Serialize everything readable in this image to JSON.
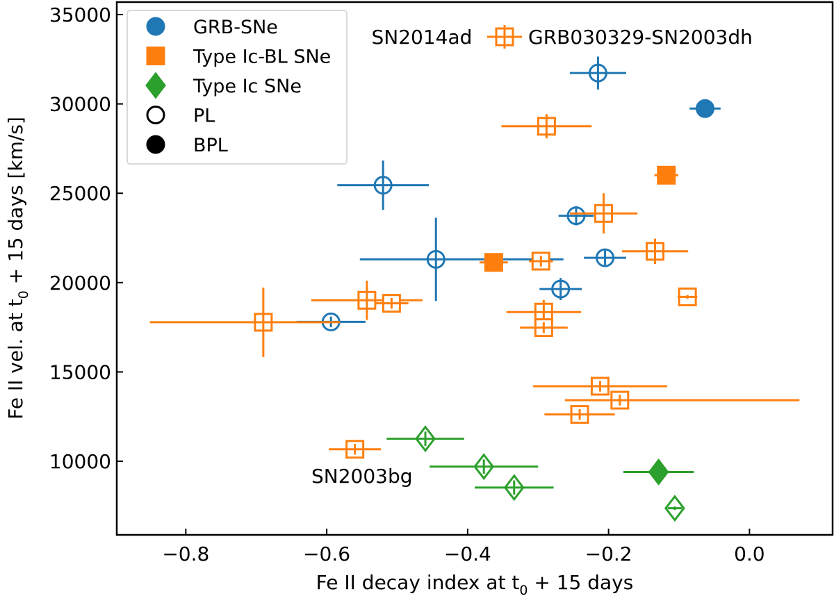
{
  "chart_data": {
    "type": "scatter",
    "title": "",
    "xlabel": {
      "main": "Fe II decay index at t",
      "sub": "0",
      "rest": " + 15 days"
    },
    "ylabel": {
      "main": "Fe II vel. at t",
      "sub": "0",
      "rest": " + 15 days [km/s]"
    },
    "xlim": [
      -0.898,
      0.118
    ],
    "ylim": [
      5880,
      35700
    ],
    "xticks": [
      -0.8,
      -0.6,
      -0.4,
      -0.2,
      0.0
    ],
    "xtick_labels": [
      "−0.8",
      "−0.6",
      "−0.4",
      "−0.2",
      "0.0"
    ],
    "yticks": [
      10000,
      15000,
      20000,
      25000,
      30000,
      35000
    ],
    "ytick_labels": [
      "10000",
      "15000",
      "20000",
      "25000",
      "30000",
      "35000"
    ],
    "grid": false,
    "legend_placement": "top-left",
    "colors": {
      "GRB-SNe": "#1f77b4",
      "Type Ic-BL SNe": "#ff7f0e",
      "Type Ic SNe": "#2ca02c"
    },
    "legend": [
      {
        "label": "GRB-SNe",
        "marker": "circle",
        "filled": true,
        "color": "#1f77b4"
      },
      {
        "label": "Type Ic-BL SNe",
        "marker": "square",
        "filled": true,
        "color": "#ff7f0e"
      },
      {
        "label": "Type Ic SNe",
        "marker": "diamond",
        "filled": true,
        "color": "#2ca02c"
      },
      {
        "label": "PL",
        "marker": "circle",
        "filled": false,
        "color": "#000000"
      },
      {
        "label": "BPL",
        "marker": "circle",
        "filled": true,
        "color": "#000000"
      }
    ],
    "series": [
      {
        "name": "GRB-SNe",
        "marker": "circle",
        "color": "#1f77b4",
        "points": [
          {
            "x": -0.215,
            "y": 31730,
            "xerr": [
              0.04,
              0.04
            ],
            "yerr": [
              920,
              920
            ],
            "fit": "PL"
          },
          {
            "x": -0.52,
            "y": 25450,
            "xerr": [
              0.065,
              0.065
            ],
            "yerr": [
              1380,
              1380
            ],
            "fit": "PL"
          },
          {
            "x": -0.445,
            "y": 21300,
            "xerr": [
              0.108,
              0.181
            ],
            "yerr": [
              2330,
              2330
            ],
            "fit": "PL"
          },
          {
            "x": -0.594,
            "y": 17800,
            "xerr": [
              0.049,
              0.049
            ],
            "yerr": [
              300,
              300
            ],
            "fit": "PL"
          },
          {
            "x": -0.246,
            "y": 23740,
            "xerr": [
              0.025,
              0.025
            ],
            "yerr": [
              540,
              540
            ],
            "fit": "PL"
          },
          {
            "x": -0.205,
            "y": 21390,
            "xerr": [
              0.03,
              0.03
            ],
            "yerr": [
              400,
              400
            ],
            "fit": "PL"
          },
          {
            "x": -0.268,
            "y": 19640,
            "xerr": [
              0.03,
              0.03
            ],
            "yerr": [
              620,
              620
            ],
            "fit": "PL"
          },
          {
            "x": -0.063,
            "y": 29740,
            "xerr": [
              0.022,
              0.022
            ],
            "yerr": [
              200,
              200
            ],
            "fit": "BPL"
          }
        ]
      },
      {
        "name": "Type Ic-BL SNe",
        "marker": "square",
        "color": "#ff7f0e",
        "points": [
          {
            "x": -0.288,
            "y": 28750,
            "xerr": [
              0.064,
              0.064
            ],
            "yerr": [
              680,
              680
            ],
            "fit": "PL"
          },
          {
            "x": -0.207,
            "y": 23870,
            "xerr": [
              0.048,
              0.048
            ],
            "yerr": [
              1130,
              1130
            ],
            "fit": "PL"
          },
          {
            "x": -0.134,
            "y": 21750,
            "xerr": [
              0.047,
              0.047
            ],
            "yerr": [
              710,
              710
            ],
            "fit": "PL"
          },
          {
            "x": -0.296,
            "y": 21200,
            "xerr": [
              0.017,
              0.017
            ],
            "yerr": [
              300,
              300
            ],
            "fit": "PL"
          },
          {
            "x": -0.088,
            "y": 19200,
            "xerr": [
              0.014,
              0.014
            ],
            "yerr": [
              100,
              100
            ],
            "fit": "PL"
          },
          {
            "x": -0.292,
            "y": 18350,
            "xerr": [
              0.053,
              0.053
            ],
            "yerr": [
              680,
              680
            ],
            "fit": "PL"
          },
          {
            "x": -0.292,
            "y": 17480,
            "xerr": [
              0.034,
              0.034
            ],
            "yerr": [
              300,
              300
            ],
            "fit": "PL"
          },
          {
            "x": -0.543,
            "y": 19010,
            "xerr": [
              0.079,
              0.079
            ],
            "yerr": [
              1100,
              1100
            ],
            "fit": "PL"
          },
          {
            "x": -0.508,
            "y": 18840,
            "xerr": [
              0.024,
              0.024
            ],
            "yerr": [
              300,
              300
            ],
            "fit": "PL"
          },
          {
            "x": -0.69,
            "y": 17780,
            "xerr": [
              0.161,
              0.109
            ],
            "yerr": [
              1940,
              1940
            ],
            "fit": "PL"
          },
          {
            "x": -0.212,
            "y": 14200,
            "xerr": [
              0.095,
              0.095
            ],
            "yerr": [
              300,
              300
            ],
            "fit": "PL"
          },
          {
            "x": -0.184,
            "y": 13420,
            "xerr": [
              0.078,
              0.255
            ],
            "yerr": [
              300,
              300
            ],
            "fit": "PL"
          },
          {
            "x": -0.241,
            "y": 12620,
            "xerr": [
              0.05,
              0.05
            ],
            "yerr": [
              300,
              300
            ],
            "fit": "PL"
          },
          {
            "x": -0.56,
            "y": 10670,
            "xerr": [
              0.037,
              0.037
            ],
            "yerr": [
              300,
              300
            ],
            "fit": "PL"
          },
          {
            "x": -0.118,
            "y": 26010,
            "xerr": [
              0.017,
              0.017
            ],
            "yerr": [
              200,
              200
            ],
            "fit": "BPL"
          },
          {
            "x": -0.363,
            "y": 21130,
            "xerr": [
              0.02,
              0.02
            ],
            "yerr": [
              200,
              200
            ],
            "fit": "BPL"
          }
        ]
      },
      {
        "name": "Type Ic SNe",
        "marker": "diamond",
        "color": "#2ca02c",
        "points": [
          {
            "x": -0.46,
            "y": 11260,
            "xerr": [
              0.055,
              0.055
            ],
            "yerr": [
              400,
              400
            ],
            "fit": "PL"
          },
          {
            "x": -0.377,
            "y": 9700,
            "xerr": [
              0.077,
              0.077
            ],
            "yerr": [
              400,
              400
            ],
            "fit": "PL"
          },
          {
            "x": -0.334,
            "y": 8530,
            "xerr": [
              0.056,
              0.056
            ],
            "yerr": [
              400,
              400
            ],
            "fit": "PL"
          },
          {
            "x": -0.106,
            "y": 7370,
            "xerr": [
              0.01,
              0.01
            ],
            "yerr": [
              100,
              100
            ],
            "fit": "PL"
          },
          {
            "x": -0.129,
            "y": 9400,
            "xerr": [
              0.05,
              0.05
            ],
            "yerr": [
              200,
              200
            ],
            "fit": "BPL"
          }
        ]
      }
    ],
    "annotations": [
      {
        "text": "SN2014ad",
        "x": -0.465,
        "y": 33760
      },
      {
        "text": "SN2003bg",
        "x": -0.55,
        "y": 9180
      }
    ],
    "second_legend": {
      "label": "GRB030329-SN2003dh",
      "marker": "square",
      "filled": false,
      "color": "#ff7f0e"
    }
  }
}
